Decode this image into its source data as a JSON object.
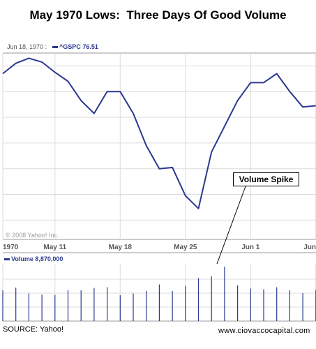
{
  "title": "May 1970 Lows:  Three Days Of Good Volume",
  "legend": {
    "date": "Jun 18, 1970 :",
    "series_name": "^GSPC",
    "series_value": "76.51"
  },
  "volume_legend": {
    "label": "Volume",
    "value": "8,870,000"
  },
  "copyright": "© 2008 Yahoo! Inc.",
  "source": "SOURCE: Yahoo!",
  "website": "www.ciovaccocapital.com",
  "annotation": "Volume Spike",
  "colors": {
    "series": "#2b3990",
    "grid": "#dcdcdc",
    "axis": "#999999"
  },
  "chart_data": {
    "type": "line",
    "xlabels": [
      "1970",
      "May 11",
      "May 18",
      "May 25",
      "Jun 1",
      "Jun"
    ],
    "xlabel_index": [
      0,
      4,
      9,
      14,
      19,
      24
    ],
    "ylim": [
      68.5,
      83
    ],
    "grid_y": [
      70,
      72,
      74,
      76,
      78,
      80,
      82
    ],
    "series": [
      {
        "name": "^GSPC",
        "values": [
          81.4,
          82.2,
          82.6,
          82.3,
          81.5,
          80.8,
          79.3,
          78.3,
          80.0,
          80.0,
          78.3,
          75.8,
          74.0,
          74.1,
          71.9,
          70.9,
          75.3,
          77.3,
          79.3,
          80.7,
          80.7,
          81.4,
          80.0,
          78.8,
          78.9
        ]
      }
    ],
    "volume": [
      8.8,
      9.6,
      7.9,
      7.6,
      7.5,
      8.9,
      8.8,
      9.5,
      9.7,
      7.4,
      7.9,
      8.6,
      10.5,
      8.6,
      10.1,
      12.3,
      12.8,
      15.6,
      10.2,
      9.3,
      9.1,
      9.7,
      8.8,
      8.0,
      8.9
    ],
    "volume_ylim": [
      0,
      16
    ]
  }
}
